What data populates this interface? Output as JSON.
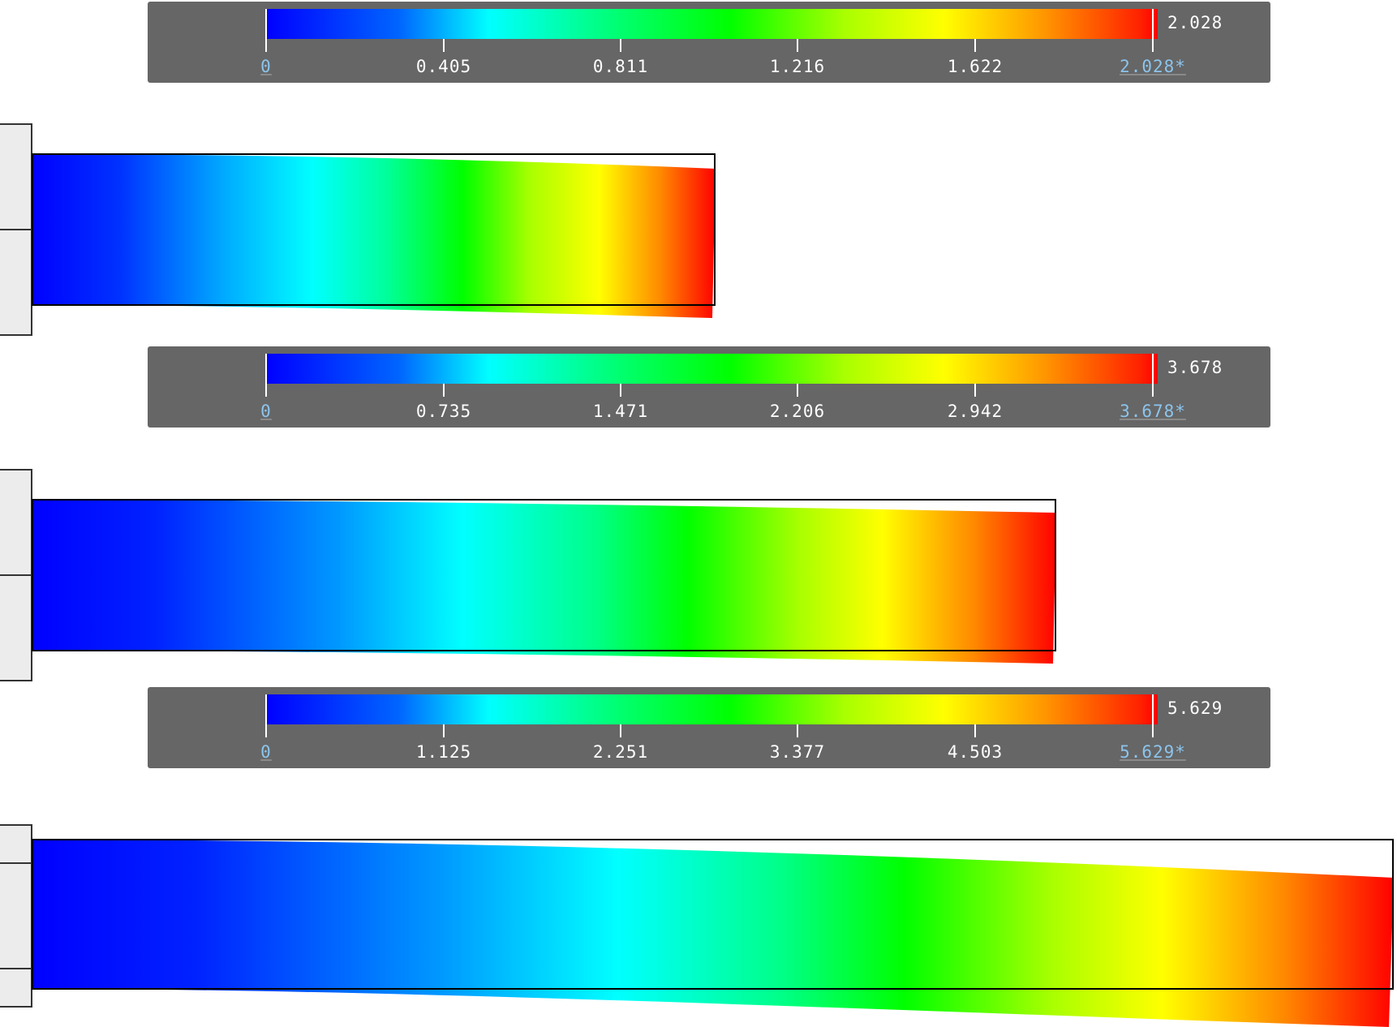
{
  "panels": [
    {
      "colorbar": {
        "ticks": [
          "0",
          "0.405",
          "0.811",
          "1.216",
          "1.622",
          "2.028*"
        ],
        "max_value": "2.028"
      },
      "beam": {
        "max_displacement": 2.028
      }
    },
    {
      "colorbar": {
        "ticks": [
          "0",
          "0.735",
          "1.471",
          "2.206",
          "2.942",
          "3.678*"
        ],
        "max_value": "3.678"
      },
      "beam": {
        "max_displacement": 3.678
      }
    },
    {
      "colorbar": {
        "ticks": [
          "0",
          "1.125",
          "2.251",
          "3.377",
          "4.503",
          "5.629*"
        ],
        "max_value": "5.629"
      },
      "beam": {
        "max_displacement": 5.629
      }
    }
  ],
  "colormap": {
    "name": "rainbow",
    "stops": [
      "#0000ff",
      "#0066ff",
      "#00ffff",
      "#00ff88",
      "#00ff00",
      "#aaff00",
      "#ffff00",
      "#ff9900",
      "#ff2200",
      "#ff0000"
    ]
  },
  "colors": {
    "panel_background": "#666666",
    "highlight_label": "#8cc4ec",
    "support_fill": "#ececec",
    "outline": "#000000"
  }
}
